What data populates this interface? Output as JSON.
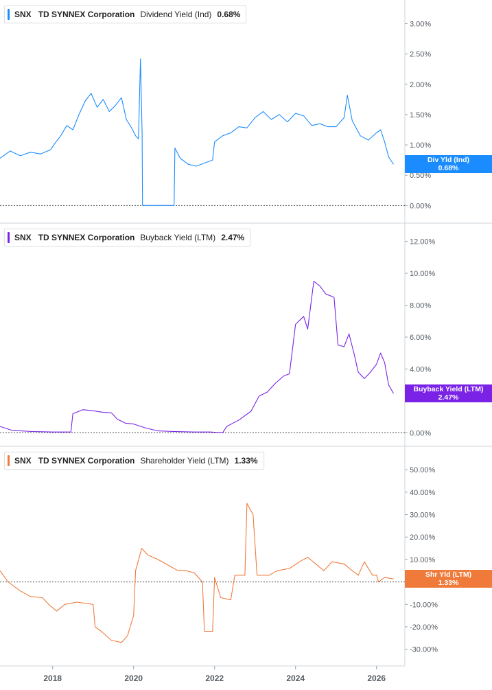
{
  "chart_data": [
    {
      "type": "line",
      "ticker": "SNX",
      "company": "TD SYNNEX Corporation",
      "metric": "Dividend Yield (Ind)",
      "current_value": "0.68%",
      "badge_label": "Div Yld (Ind)",
      "badge_value": "0.68%",
      "color": "#1a8cff",
      "ylim": [
        -0.2,
        3.3
      ],
      "yticks": [
        0,
        0.5,
        1,
        1.5,
        2,
        2.5,
        3
      ],
      "ytick_labels": [
        "0.00%",
        "0.50%",
        "1.00%",
        "1.50%",
        "2.00%",
        "2.50%",
        "3.00%"
      ],
      "zero_line": true,
      "series": [
        {
          "values": [
            [
              2016.7,
              0.78
            ],
            [
              2016.95,
              0.9
            ],
            [
              2017.2,
              0.82
            ],
            [
              2017.45,
              0.88
            ],
            [
              2017.7,
              0.85
            ],
            [
              2017.95,
              0.92
            ],
            [
              2018.05,
              1.02
            ],
            [
              2018.2,
              1.15
            ],
            [
              2018.35,
              1.32
            ],
            [
              2018.5,
              1.25
            ],
            [
              2018.65,
              1.5
            ],
            [
              2018.8,
              1.72
            ],
            [
              2018.95,
              1.85
            ],
            [
              2019.1,
              1.62
            ],
            [
              2019.25,
              1.75
            ],
            [
              2019.4,
              1.55
            ],
            [
              2019.55,
              1.65
            ],
            [
              2019.7,
              1.78
            ],
            [
              2019.82,
              1.42
            ],
            [
              2019.95,
              1.28
            ],
            [
              2020.05,
              1.15
            ],
            [
              2020.12,
              1.1
            ],
            [
              2020.17,
              2.42
            ],
            [
              2020.21,
              1.2
            ],
            [
              2020.22,
              0.0
            ],
            [
              2020.6,
              0.0
            ],
            [
              2021.0,
              0.0
            ],
            [
              2021.02,
              0.95
            ],
            [
              2021.15,
              0.78
            ],
            [
              2021.35,
              0.68
            ],
            [
              2021.55,
              0.65
            ],
            [
              2021.75,
              0.7
            ],
            [
              2021.95,
              0.75
            ],
            [
              2022.0,
              1.05
            ],
            [
              2022.2,
              1.15
            ],
            [
              2022.4,
              1.2
            ],
            [
              2022.6,
              1.3
            ],
            [
              2022.8,
              1.28
            ],
            [
              2023.0,
              1.45
            ],
            [
              2023.2,
              1.55
            ],
            [
              2023.4,
              1.42
            ],
            [
              2023.6,
              1.5
            ],
            [
              2023.8,
              1.38
            ],
            [
              2024.0,
              1.52
            ],
            [
              2024.2,
              1.48
            ],
            [
              2024.4,
              1.32
            ],
            [
              2024.6,
              1.35
            ],
            [
              2024.8,
              1.3
            ],
            [
              2025.0,
              1.3
            ],
            [
              2025.2,
              1.45
            ],
            [
              2025.28,
              1.82
            ],
            [
              2025.4,
              1.4
            ],
            [
              2025.6,
              1.15
            ],
            [
              2025.8,
              1.08
            ],
            [
              2026.0,
              1.2
            ],
            [
              2026.1,
              1.25
            ],
            [
              2026.2,
              1.05
            ],
            [
              2026.3,
              0.8
            ],
            [
              2026.42,
              0.68
            ]
          ]
        }
      ]
    },
    {
      "type": "line",
      "ticker": "SNX",
      "company": "TD SYNNEX Corporation",
      "metric": "Buyback Yield (LTM)",
      "current_value": "2.47%",
      "badge_label": "Buyback Yield (LTM)",
      "badge_value": "2.47%",
      "color": "#7a22e6",
      "ylim": [
        -0.5,
        12.8
      ],
      "yticks": [
        0,
        2,
        4,
        6,
        8,
        10,
        12
      ],
      "ytick_labels": [
        "0.00%",
        "",
        "4.00%",
        "6.00%",
        "8.00%",
        "10.00%",
        "12.00%"
      ],
      "zero_line": true,
      "series": [
        {
          "values": [
            [
              2016.7,
              0.4
            ],
            [
              2017.0,
              0.15
            ],
            [
              2017.5,
              0.08
            ],
            [
              2018.0,
              0.05
            ],
            [
              2018.45,
              0.05
            ],
            [
              2018.5,
              1.2
            ],
            [
              2018.75,
              1.45
            ],
            [
              2019.0,
              1.38
            ],
            [
              2019.25,
              1.28
            ],
            [
              2019.45,
              1.25
            ],
            [
              2019.6,
              0.85
            ],
            [
              2019.8,
              0.6
            ],
            [
              2020.0,
              0.55
            ],
            [
              2020.3,
              0.3
            ],
            [
              2020.6,
              0.12
            ],
            [
              2021.0,
              0.08
            ],
            [
              2021.5,
              0.05
            ],
            [
              2021.9,
              0.05
            ],
            [
              2022.2,
              0.0
            ],
            [
              2022.3,
              0.4
            ],
            [
              2022.6,
              0.8
            ],
            [
              2022.9,
              1.35
            ],
            [
              2023.1,
              2.3
            ],
            [
              2023.3,
              2.55
            ],
            [
              2023.5,
              3.1
            ],
            [
              2023.7,
              3.55
            ],
            [
              2023.85,
              3.7
            ],
            [
              2024.0,
              6.8
            ],
            [
              2024.2,
              7.3
            ],
            [
              2024.3,
              6.5
            ],
            [
              2024.45,
              9.5
            ],
            [
              2024.6,
              9.2
            ],
            [
              2024.75,
              8.7
            ],
            [
              2024.95,
              8.5
            ],
            [
              2025.05,
              5.5
            ],
            [
              2025.2,
              5.4
            ],
            [
              2025.32,
              6.2
            ],
            [
              2025.45,
              4.9
            ],
            [
              2025.55,
              3.8
            ],
            [
              2025.7,
              3.4
            ],
            [
              2025.85,
              3.8
            ],
            [
              2026.0,
              4.3
            ],
            [
              2026.1,
              5.0
            ],
            [
              2026.2,
              4.4
            ],
            [
              2026.3,
              3.0
            ],
            [
              2026.42,
              2.47
            ]
          ]
        }
      ]
    },
    {
      "type": "line",
      "ticker": "SNX",
      "company": "TD SYNNEX Corporation",
      "metric": "Shareholder Yield (LTM)",
      "current_value": "1.33%",
      "badge_label": "Shr Yld (LTM)",
      "badge_value": "1.33%",
      "color": "#f07a3a",
      "ylim": [
        -35,
        58
      ],
      "yticks": [
        -30,
        -20,
        -10,
        0,
        10,
        20,
        30,
        40,
        50
      ],
      "ytick_labels": [
        "-30.00%",
        "-20.00%",
        "-10.00%",
        "0.00%",
        "10.00%",
        "20.00%",
        "30.00%",
        "40.00%",
        "50.00%"
      ],
      "zero_line": true,
      "series": [
        {
          "values": [
            [
              2016.7,
              5
            ],
            [
              2016.9,
              0
            ],
            [
              2017.2,
              -4
            ],
            [
              2017.45,
              -6.5
            ],
            [
              2017.75,
              -7
            ],
            [
              2017.9,
              -10
            ],
            [
              2018.1,
              -13
            ],
            [
              2018.3,
              -10
            ],
            [
              2018.6,
              -9
            ],
            [
              2019.0,
              -10
            ],
            [
              2019.05,
              -20
            ],
            [
              2019.2,
              -22
            ],
            [
              2019.45,
              -26
            ],
            [
              2019.7,
              -27
            ],
            [
              2019.85,
              -24
            ],
            [
              2020.0,
              -15
            ],
            [
              2020.05,
              5
            ],
            [
              2020.2,
              15
            ],
            [
              2020.35,
              12
            ],
            [
              2020.6,
              10
            ],
            [
              2020.8,
              8
            ],
            [
              2021.0,
              6
            ],
            [
              2021.1,
              5
            ],
            [
              2021.3,
              5
            ],
            [
              2021.5,
              4
            ],
            [
              2021.7,
              0
            ],
            [
              2021.75,
              -22
            ],
            [
              2021.95,
              -22
            ],
            [
              2022.0,
              2
            ],
            [
              2022.15,
              -7
            ],
            [
              2022.4,
              -8
            ],
            [
              2022.5,
              3
            ],
            [
              2022.75,
              3
            ],
            [
              2022.8,
              35
            ],
            [
              2022.95,
              30
            ],
            [
              2023.05,
              3
            ],
            [
              2023.35,
              3
            ],
            [
              2023.55,
              5
            ],
            [
              2023.85,
              6
            ],
            [
              2024.1,
              9
            ],
            [
              2024.3,
              11
            ],
            [
              2024.5,
              8
            ],
            [
              2024.7,
              5
            ],
            [
              2024.9,
              9
            ],
            [
              2025.2,
              8
            ],
            [
              2025.4,
              5
            ],
            [
              2025.55,
              3
            ],
            [
              2025.7,
              9
            ],
            [
              2025.9,
              3
            ],
            [
              2026.0,
              3
            ],
            [
              2026.05,
              0
            ],
            [
              2026.2,
              2
            ],
            [
              2026.42,
              1.33
            ]
          ]
        }
      ]
    }
  ],
  "x_axis": {
    "range": [
      2016.7,
      2026.7
    ],
    "ticks": [
      2018,
      2020,
      2022,
      2024,
      2026
    ],
    "tick_labels": [
      "2018",
      "2020",
      "2022",
      "2024",
      "2026"
    ]
  }
}
